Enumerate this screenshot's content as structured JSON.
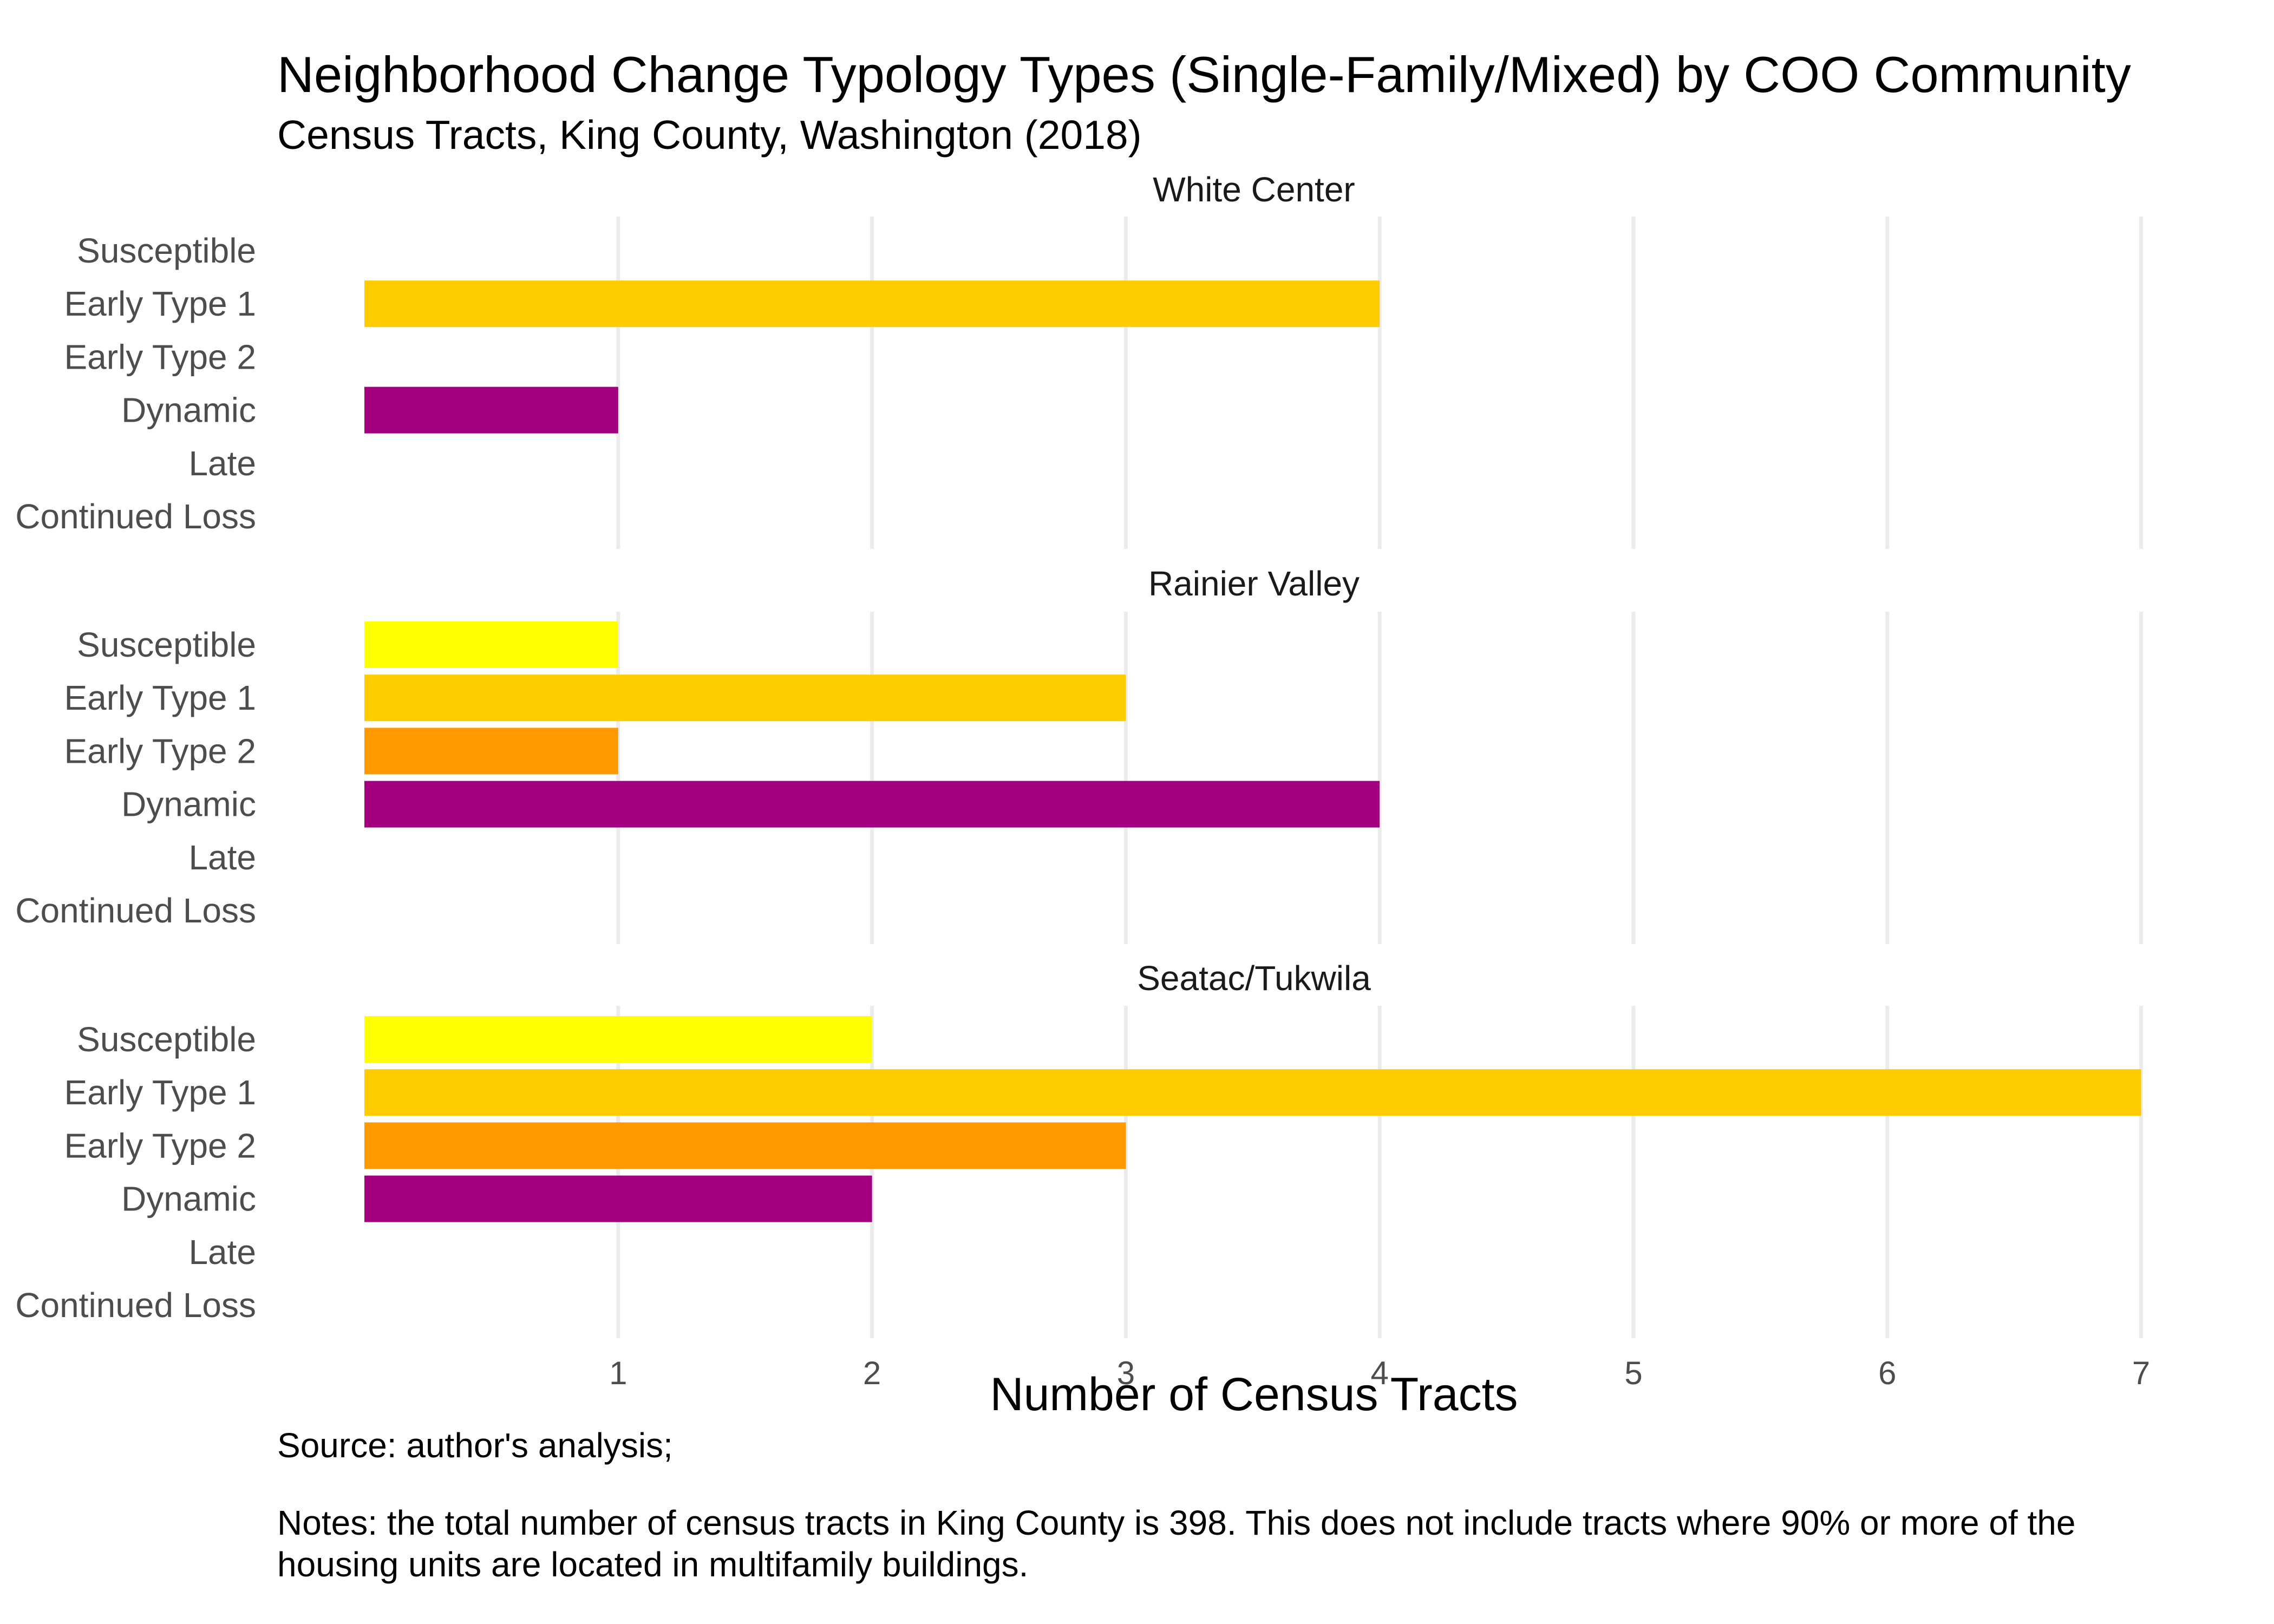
{
  "chart_data": {
    "type": "bar",
    "orientation": "horizontal",
    "title": "Neighborhood Change Typology Types (Single-Family/Mixed) by COO Community",
    "subtitle": "Census Tracts, King County, Washington (2018)",
    "xlabel": "Number of Census Tracts",
    "ylabel": "",
    "xlim": [
      0,
      7.1
    ],
    "x_ticks": [
      1,
      2,
      3,
      4,
      5,
      6,
      7
    ],
    "grid": "vertical major",
    "legend": "none",
    "categories": [
      "Susceptible",
      "Early Type 1",
      "Early Type 2",
      "Dynamic",
      "Late",
      "Continued Loss"
    ],
    "category_colors": {
      "Susceptible": "#FFFF00",
      "Early Type 1": "#FFCC00",
      "Early Type 2": "#FF9900",
      "Dynamic": "#A2007F",
      "Late": "#666666",
      "Continued Loss": "#333333"
    },
    "facets": [
      {
        "name": "White Center",
        "values": [
          0,
          4,
          0,
          1,
          0,
          0
        ]
      },
      {
        "name": "Rainier Valley",
        "values": [
          1,
          3,
          1,
          4,
          0,
          0
        ]
      },
      {
        "name": "Seatac/Tukwila",
        "values": [
          2,
          7,
          3,
          2,
          0,
          0
        ]
      }
    ],
    "caption_lines": [
      "Source: author's analysis;",
      "",
      "Notes: the total number of census tracts in King County is 398. This does not include tracts where 90% or more of the",
      "housing units are located in multifamily buildings."
    ]
  }
}
